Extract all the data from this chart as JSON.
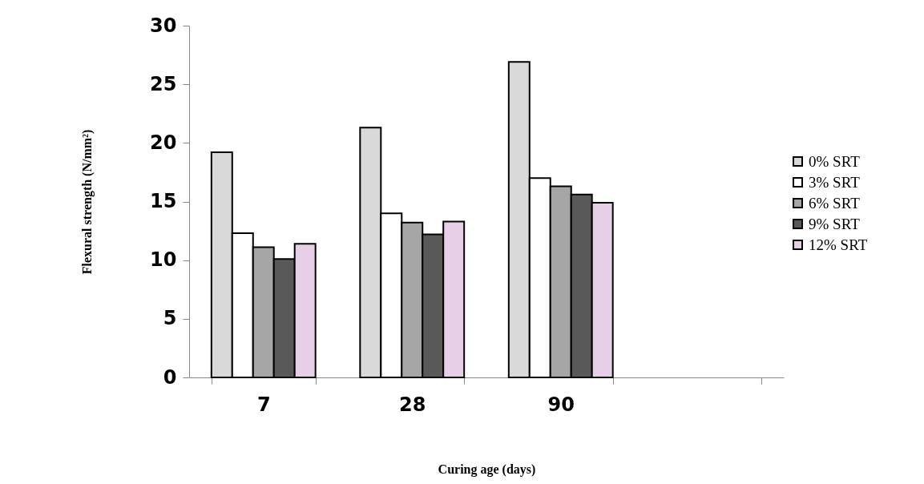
{
  "chart_data": {
    "type": "bar",
    "xlabel": "Curing age (days)",
    "ylabel": "Flexural strength (N/mm²)",
    "categories": [
      "7",
      "28",
      "90",
      null
    ],
    "series": [
      {
        "name": "0% SRT",
        "color": "#d9d9d9",
        "values": [
          19.2,
          21.3,
          26.9,
          null
        ]
      },
      {
        "name": "3% SRT",
        "color": "#ffffff",
        "values": [
          12.3,
          14.0,
          17.0,
          null
        ]
      },
      {
        "name": "6% SRT",
        "color": "#a6a6a6",
        "values": [
          11.1,
          13.2,
          16.3,
          null
        ]
      },
      {
        "name": "9% SRT",
        "color": "#595959",
        "values": [
          10.1,
          12.2,
          15.6,
          null
        ]
      },
      {
        "name": "12% SRT",
        "color": "#e8cfe8",
        "values": [
          11.4,
          13.3,
          14.9,
          null
        ]
      }
    ],
    "ylim": [
      0,
      30
    ],
    "yticks": [
      0,
      5,
      10,
      15,
      20,
      25,
      30
    ],
    "grid": false,
    "legend": "right"
  }
}
